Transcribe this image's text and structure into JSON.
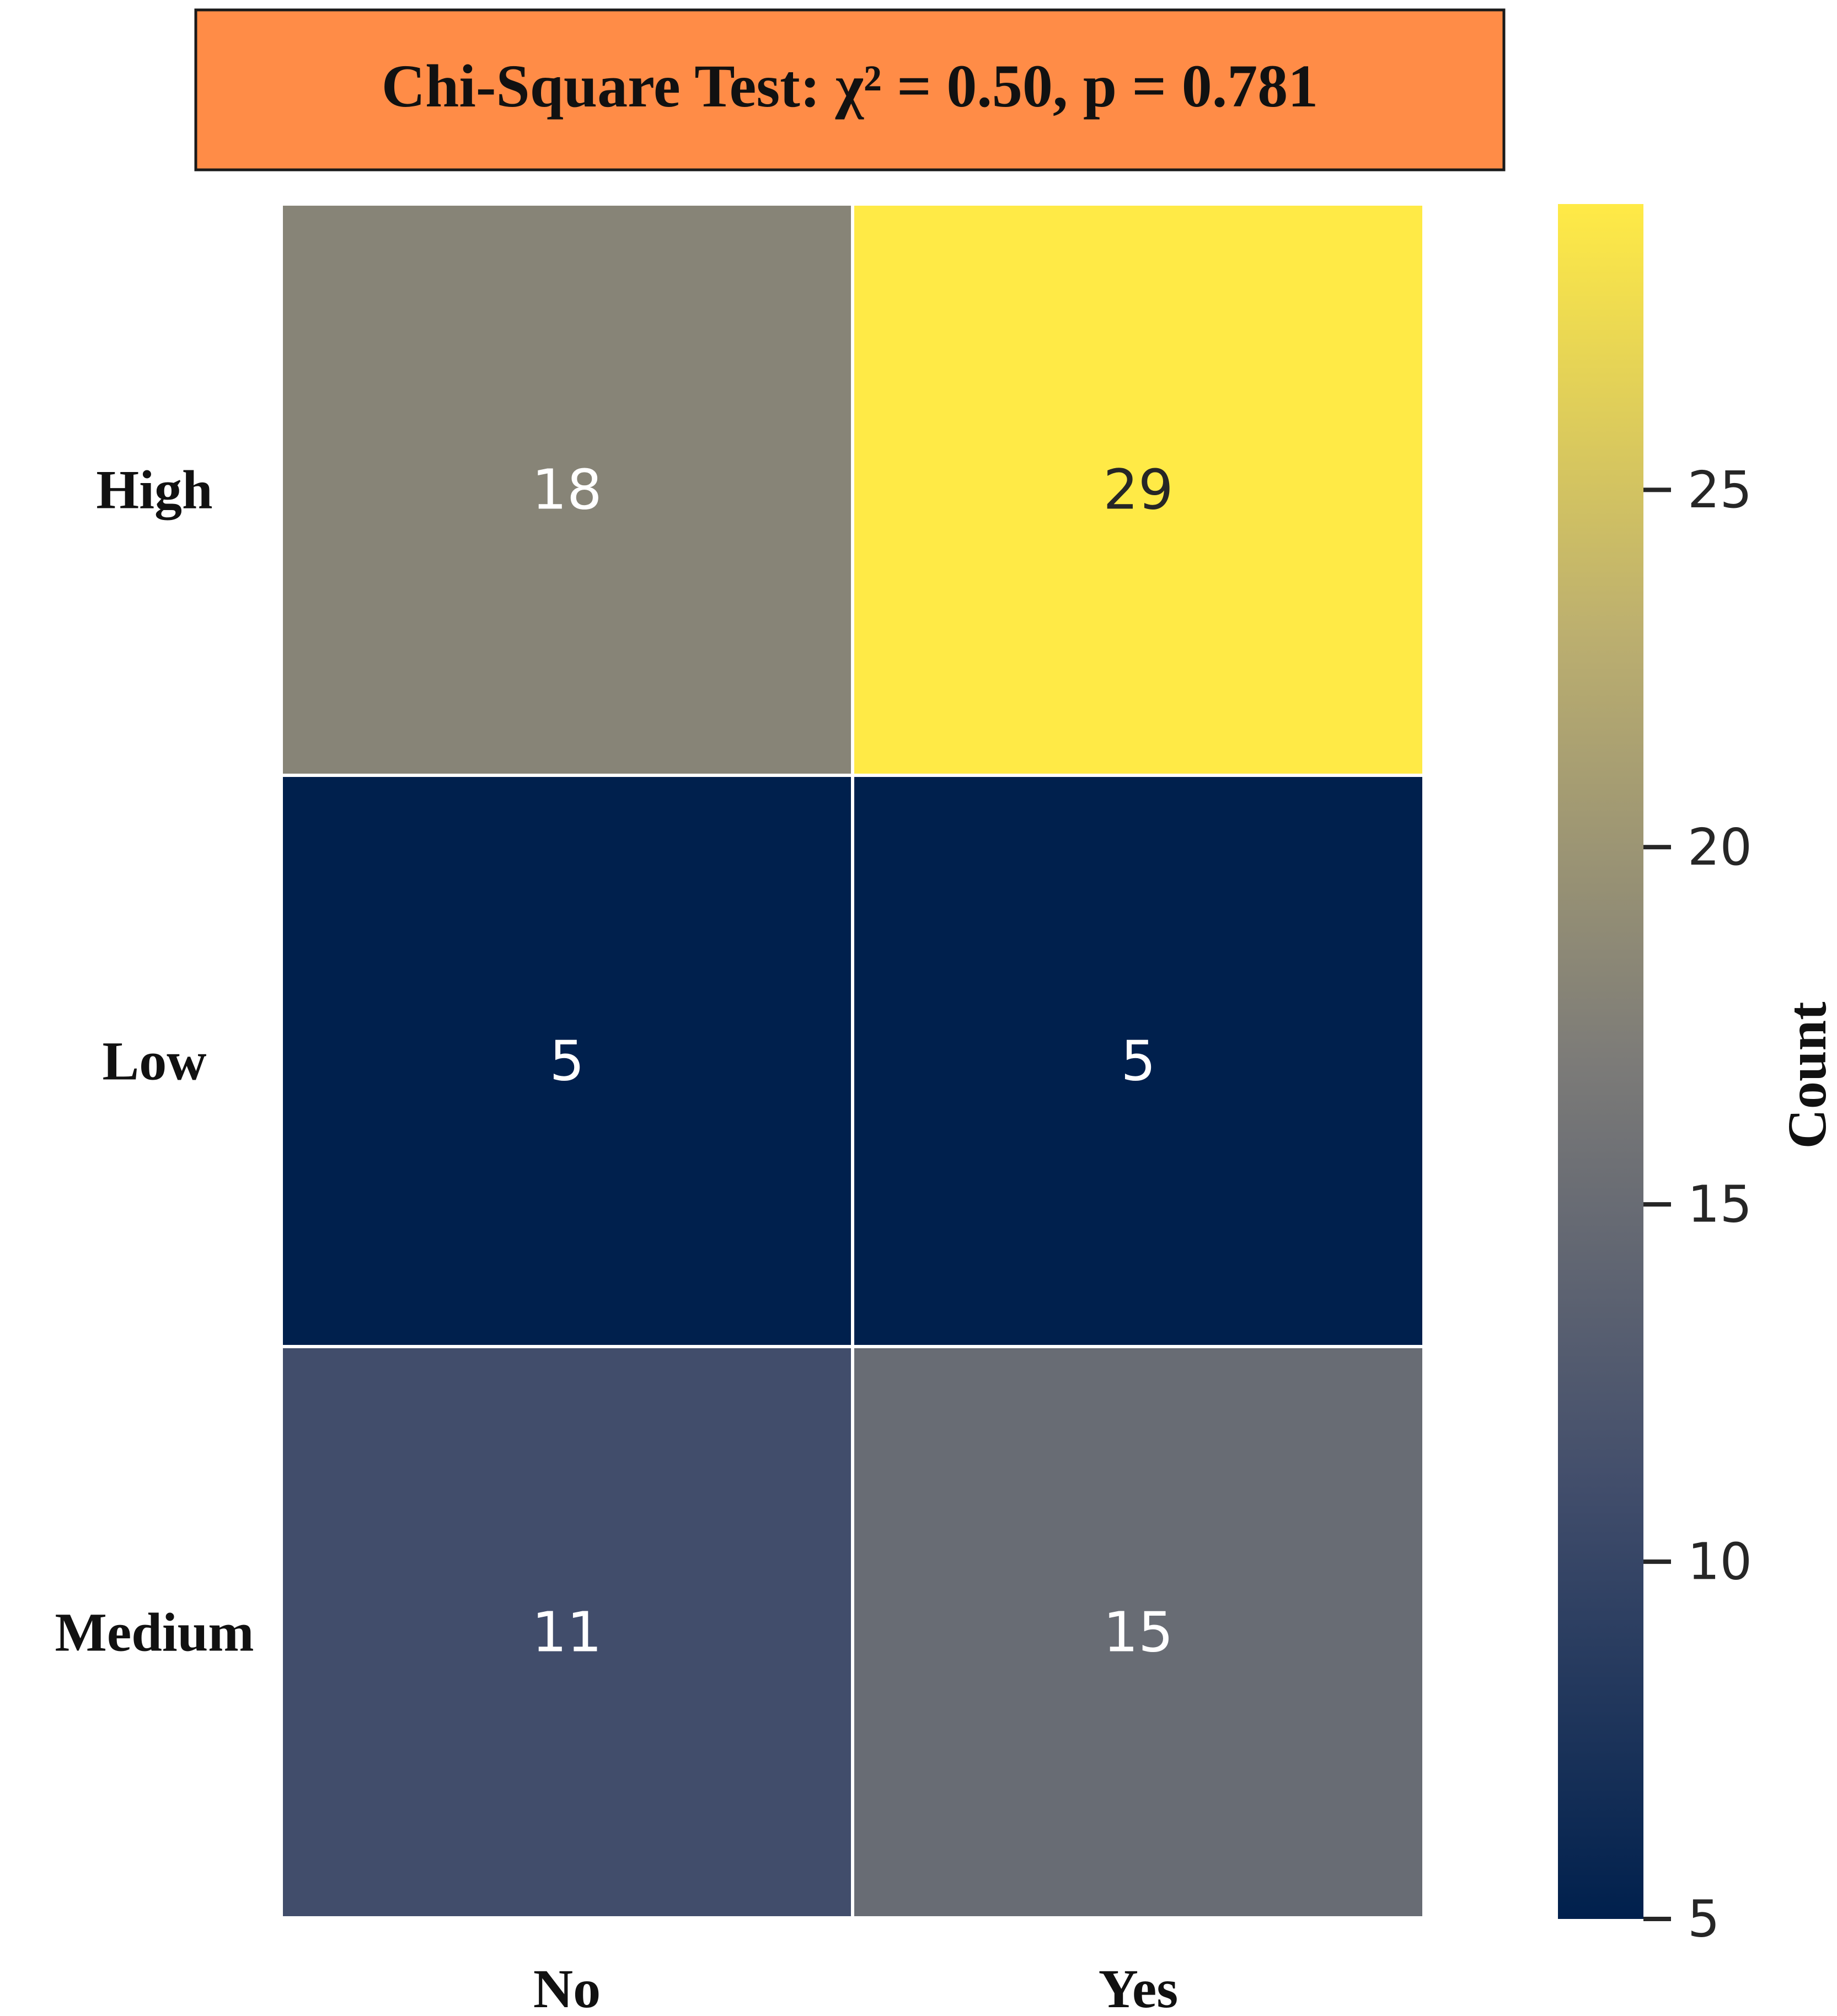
{
  "chart_data": {
    "type": "heatmap",
    "title": "Chi-Square Test: χ² = 0.50, p = 0.781",
    "rows": [
      "High",
      "Low",
      "Medium"
    ],
    "columns": [
      "No",
      "Yes"
    ],
    "values": [
      [
        18,
        29
      ],
      [
        5,
        5
      ],
      [
        11,
        15
      ]
    ],
    "colorbar": {
      "label": "Count",
      "min": 5,
      "max": 29,
      "ticks": [
        5,
        10,
        15,
        20,
        25
      ]
    },
    "colors": {
      "title_box_fill": "#FF8C47",
      "colormap_stops": [
        "#00204D",
        "#414D6B",
        "#7C7B78",
        "#BCAF6F",
        "#FFEA46"
      ]
    }
  }
}
